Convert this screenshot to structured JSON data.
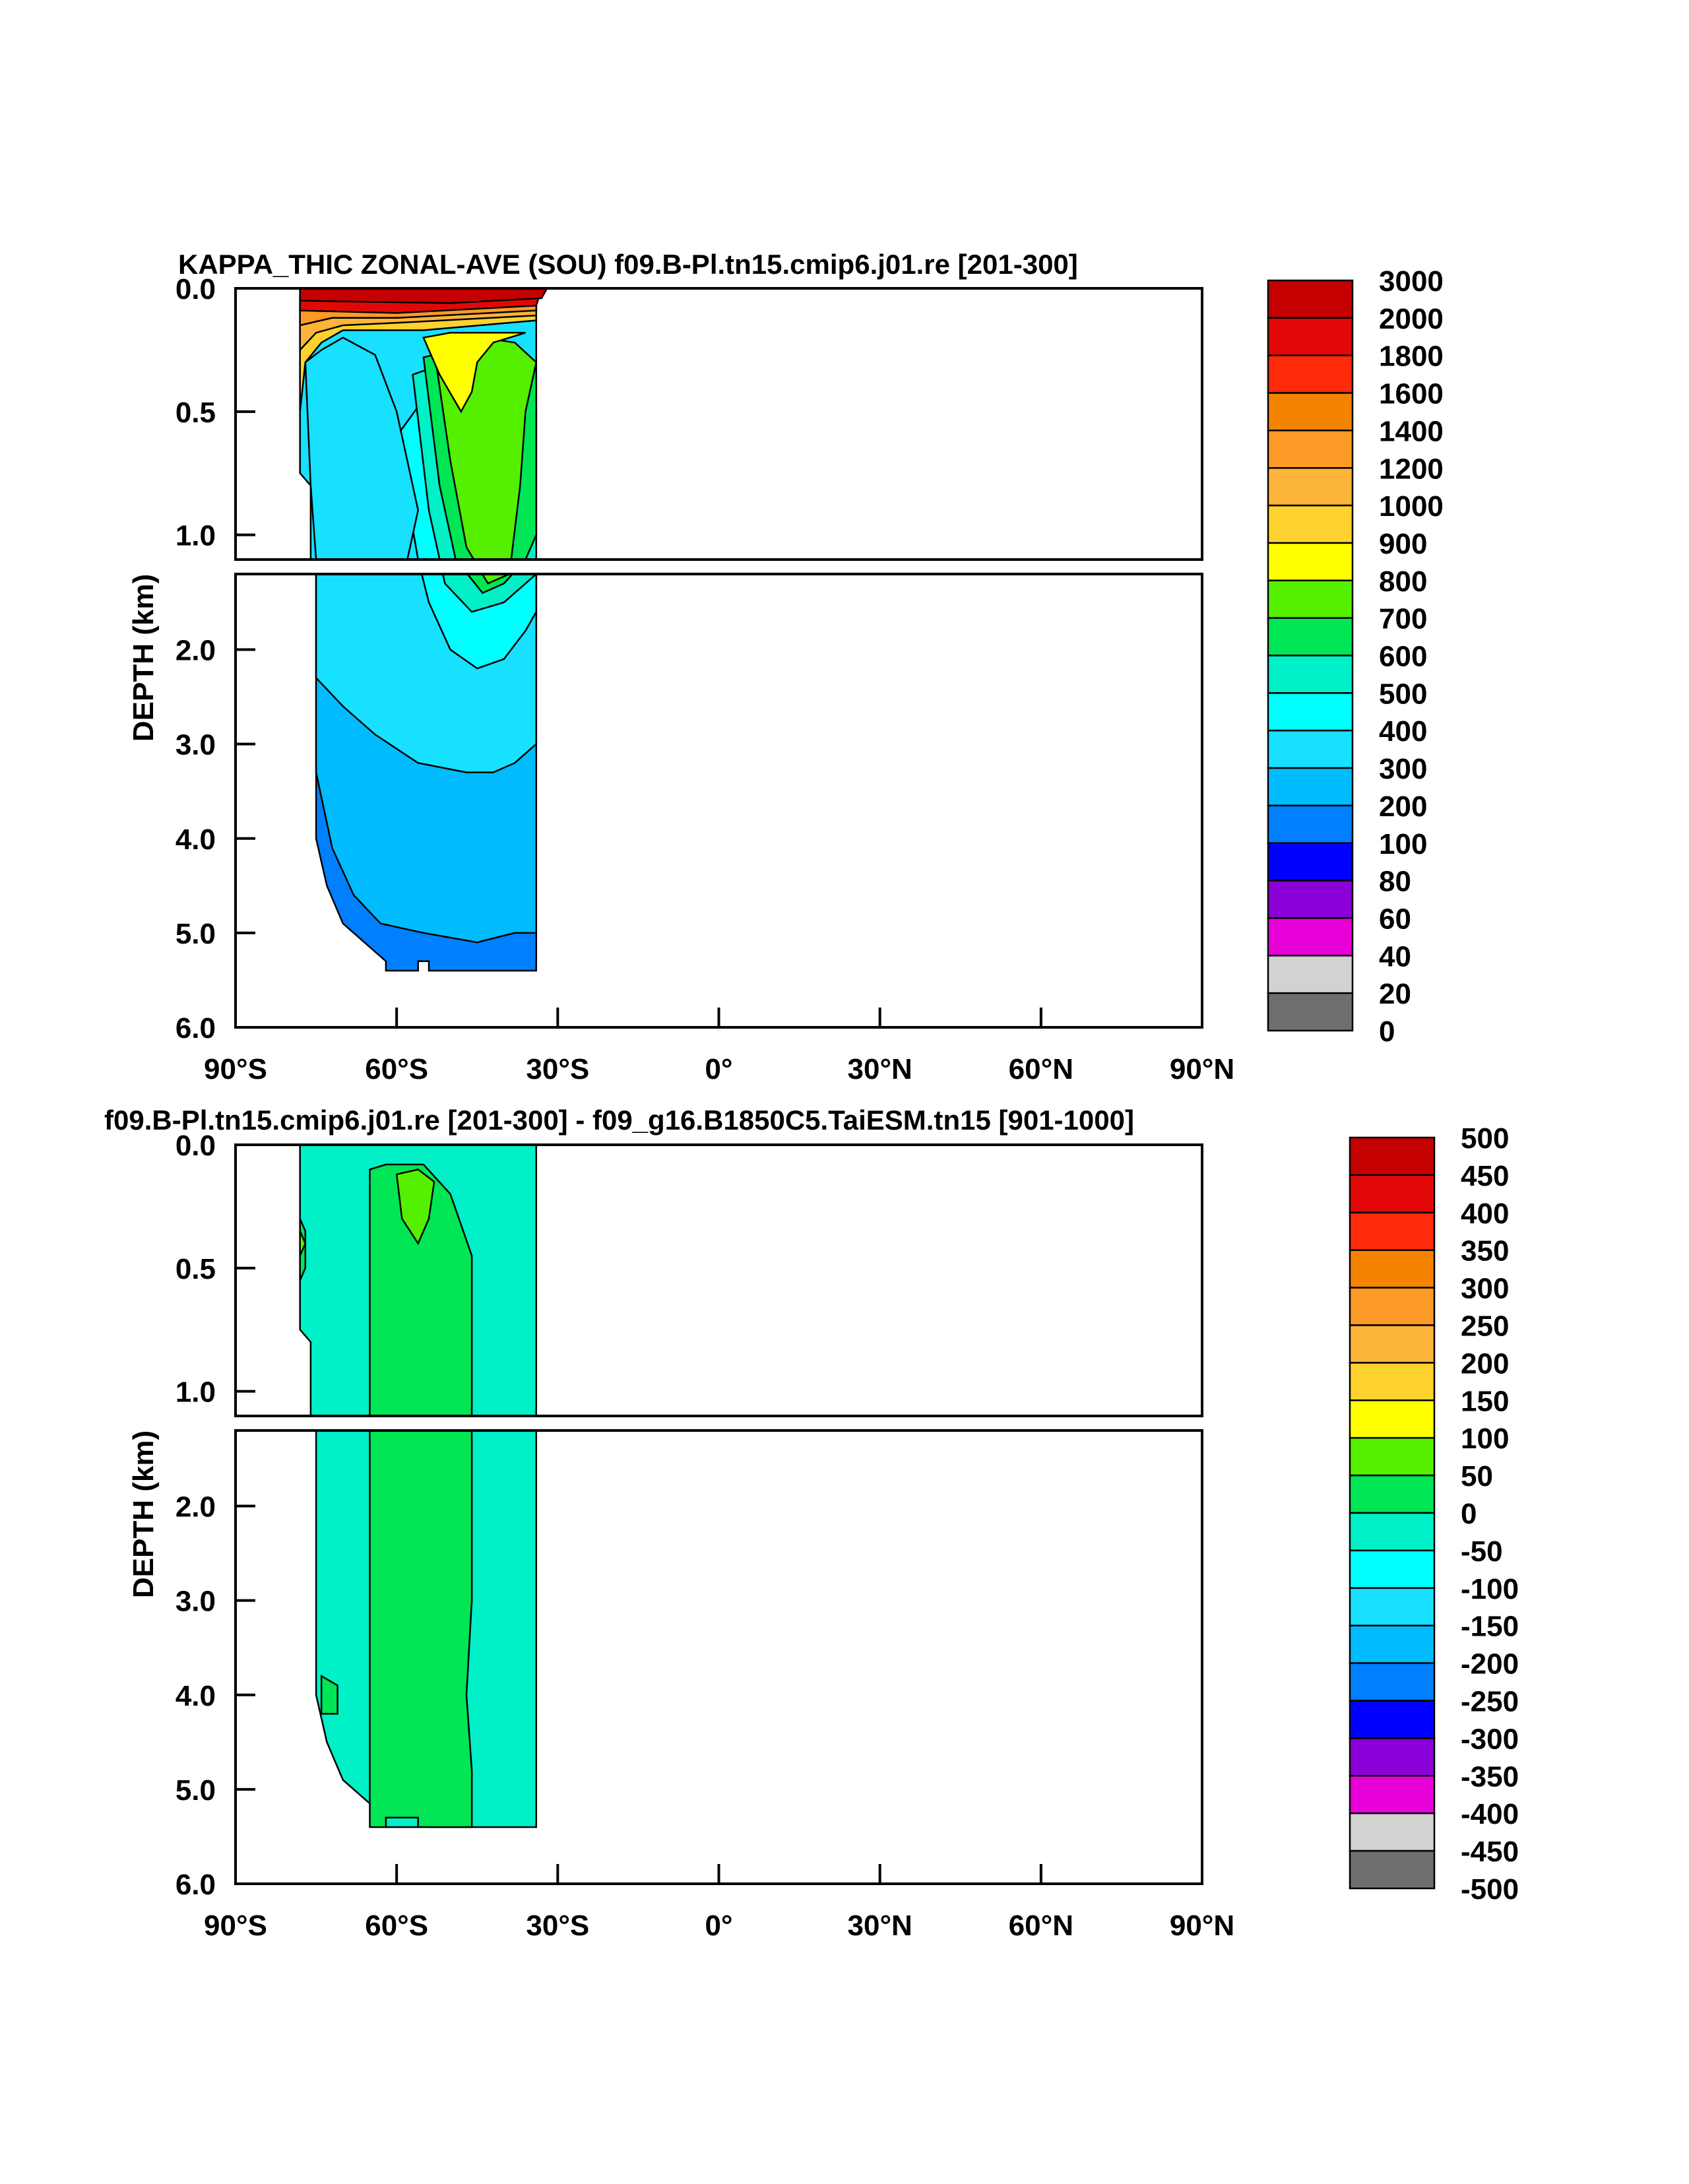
{
  "chart_data": [
    {
      "type": "contour",
      "title": "KAPPA_THIC ZONAL-AVE (SOU) f09.B-Pl.tn15.cmip6.j01.re [201-300]",
      "ylabel": "DEPTH (km)",
      "xlabel": "",
      "x_ticks": [
        "90°S",
        "60°S",
        "30°S",
        "0°",
        "30°N",
        "60°N",
        "90°N"
      ],
      "y_ticks_upper": [
        "0.0",
        "0.5",
        "1.0"
      ],
      "y_ticks_lower": [
        "2.0",
        "3.0",
        "4.0",
        "5.0",
        "6.0"
      ],
      "xlim": [
        -90,
        90
      ],
      "ylim": [
        6.0,
        0.0
      ],
      "colorbar": {
        "levels": [
          "3000",
          "2000",
          "1800",
          "1600",
          "1400",
          "1200",
          "1000",
          "900",
          "800",
          "700",
          "600",
          "500",
          "400",
          "300",
          "200",
          "100",
          "80",
          "60",
          "40",
          "20",
          "0"
        ],
        "colors": [
          "#c40000",
          "#e20808",
          "#ff2a0a",
          "#f48300",
          "#fb9a27",
          "#fdb43b",
          "#fdd22e",
          "#ffff00",
          "#55f000",
          "#00e654",
          "#00f0c8",
          "#00ffff",
          "#18e0ff",
          "#00bcff",
          "#0080ff",
          "#0000ff",
          "#8b00d8",
          "#e800d8",
          "#d2d2d2",
          "#6e6e6e"
        ]
      },
      "regions": [
        {
          "name": "surface high",
          "range": "2000-3000",
          "x": [
            -78,
            -32
          ],
          "depth": [
            0.0,
            0.08
          ]
        },
        {
          "name": "upper core",
          "range": "300-400",
          "x": [
            -76,
            -56
          ],
          "depth": [
            0.3,
            1.3
          ]
        },
        {
          "name": "mid-latitude maximum",
          "range": "700-800",
          "x": [
            -55,
            -36
          ],
          "depth": [
            0.2,
            1.2
          ]
        },
        {
          "name": "deep",
          "range": "200-300",
          "x": [
            -76,
            -34
          ],
          "depth": [
            3.0,
            5.0
          ]
        },
        {
          "name": "bottom",
          "range": "100-200",
          "x": [
            -74,
            -34
          ],
          "depth": [
            5.0,
            5.4
          ]
        }
      ]
    },
    {
      "type": "contour",
      "title": "f09.B-Pl.tn15.cmip6.j01.re [201-300] - f09_g16.B1850C5.TaiESM.tn15 [901-1000]",
      "ylabel": "DEPTH (km)",
      "xlabel": "",
      "x_ticks": [
        "90°S",
        "60°S",
        "30°S",
        "0°",
        "30°N",
        "60°N",
        "90°N"
      ],
      "y_ticks_upper": [
        "0.0",
        "0.5",
        "1.0"
      ],
      "y_ticks_lower": [
        "2.0",
        "3.0",
        "4.0",
        "5.0",
        "6.0"
      ],
      "xlim": [
        -90,
        90
      ],
      "ylim": [
        6.0,
        0.0
      ],
      "colorbar": {
        "levels": [
          "500",
          "450",
          "400",
          "350",
          "300",
          "250",
          "200",
          "150",
          "100",
          "50",
          "0",
          "-50",
          "-100",
          "-150",
          "-200",
          "-250",
          "-300",
          "-350",
          "-400",
          "-450",
          "-500"
        ],
        "colors": [
          "#c40000",
          "#e20808",
          "#ff2a0a",
          "#f48300",
          "#fb9a27",
          "#fdb43b",
          "#fdd22e",
          "#ffff00",
          "#55f000",
          "#00e654",
          "#00f0c8",
          "#00ffff",
          "#18e0ff",
          "#00bcff",
          "#0080ff",
          "#0000ff",
          "#8b00d8",
          "#e800d8",
          "#d2d2d2",
          "#6e6e6e"
        ]
      },
      "regions": [
        {
          "name": "background",
          "range": "-50-0",
          "x": [
            -78,
            -34
          ],
          "depth": [
            0.0,
            5.4
          ]
        },
        {
          "name": "central band",
          "range": "0-50",
          "x": [
            -65,
            -45
          ],
          "depth": [
            0.1,
            5.4
          ]
        },
        {
          "name": "near-surface positive",
          "range": "50-100",
          "x": [
            -60,
            -52
          ],
          "depth": [
            0.1,
            0.35
          ]
        }
      ]
    }
  ]
}
